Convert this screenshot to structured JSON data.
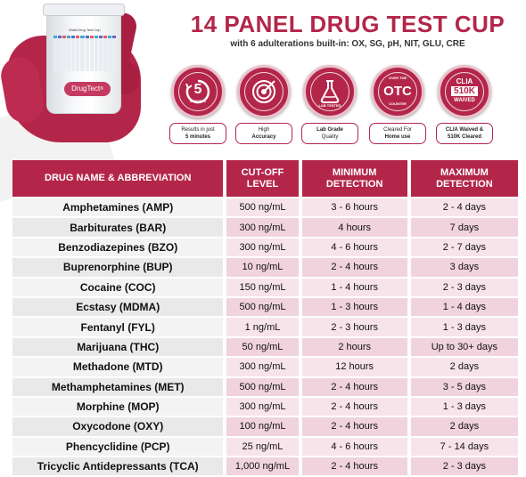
{
  "title": "14 PANEL DRUG TEST CUP",
  "subtitle": "with 6 adulterations built-in: OX, SG, pH, NIT, GLU, CRE",
  "product": {
    "cup_label": "Multi-Drug Test Cup",
    "brand": "DrugTect",
    "brand_mark": "®"
  },
  "badges": [
    {
      "icon": "timer-5-minutes-icon",
      "badge_text": "5",
      "badge_subtext": "MINUTES",
      "caption_top": "Results in just",
      "caption_bold": "5 minutes"
    },
    {
      "icon": "target-icon",
      "badge_text": "",
      "badge_subtext": "",
      "caption_top": "High",
      "caption_bold": "Accuracy"
    },
    {
      "icon": "lab-flask-icon",
      "badge_text": "",
      "badge_subtext": "LAB TESTED",
      "caption_top": "Lab Grade",
      "caption_bold": "Quality"
    },
    {
      "icon": "otc-seal-icon",
      "badge_text": "OTC",
      "badge_subtext": "OVER THE COUNTER",
      "caption_top": "Cleared For",
      "caption_bold": "Home use"
    },
    {
      "icon": "clia-seal-icon",
      "badge_text": "510K",
      "badge_subtext": "CLIA",
      "badge_subtext2": "WAIVED",
      "caption_top": "CLIA Waived &",
      "caption_bold": "510K Cleared"
    }
  ],
  "table": {
    "headers": [
      "DRUG NAME & ABBREVIATION",
      "CUT-OFF LEVEL",
      "MINIMUM DETECTION",
      "MAXIMUM DETECTION"
    ],
    "rows": [
      [
        "Amphetamines (AMP)",
        "500 ng/mL",
        "3 - 6 hours",
        "2 - 4 days"
      ],
      [
        "Barbiturates (BAR)",
        "300 ng/mL",
        "4 hours",
        "7 days"
      ],
      [
        "Benzodiazepines (BZO)",
        "300 ng/mL",
        "4 - 6 hours",
        "2 - 7 days"
      ],
      [
        "Buprenorphine (BUP)",
        "10 ng/mL",
        "2 - 4 hours",
        "3 days"
      ],
      [
        "Cocaine (COC)",
        "150 ng/mL",
        "1 - 4 hours",
        "2 - 3 days"
      ],
      [
        "Ecstasy (MDMA)",
        "500 ng/mL",
        "1 - 3 hours",
        "1 - 4 days"
      ],
      [
        "Fentanyl (FYL)",
        "1 ng/mL",
        "2 - 3 hours",
        "1 - 3 days"
      ],
      [
        "Marijuana (THC)",
        "50 ng/mL",
        "2 hours",
        "Up to 30+ days"
      ],
      [
        "Methadone (MTD)",
        "300 ng/mL",
        "12 hours",
        "2 days"
      ],
      [
        "Methamphetamines (MET)",
        "500 ng/mL",
        "2 - 4 hours",
        "3 - 5 days"
      ],
      [
        "Morphine (MOP)",
        "300 ng/mL",
        "2 - 4 hours",
        "1 - 3 days"
      ],
      [
        "Oxycodone (OXY)",
        "100 ng/mL",
        "2 - 4 hours",
        "2 days"
      ],
      [
        "Phencyclidine (PCP)",
        "25 ng/mL",
        "4 - 6 hours",
        "7 - 14 days"
      ],
      [
        "Tricyclic Antidepressants (TCA)",
        "1,000 ng/mL",
        "2 - 4 hours",
        "2 - 3 days"
      ]
    ]
  },
  "colors": {
    "brand": "#b3264a",
    "row_light": "#f7e4ea",
    "row_dark": "#f0d3dd"
  }
}
